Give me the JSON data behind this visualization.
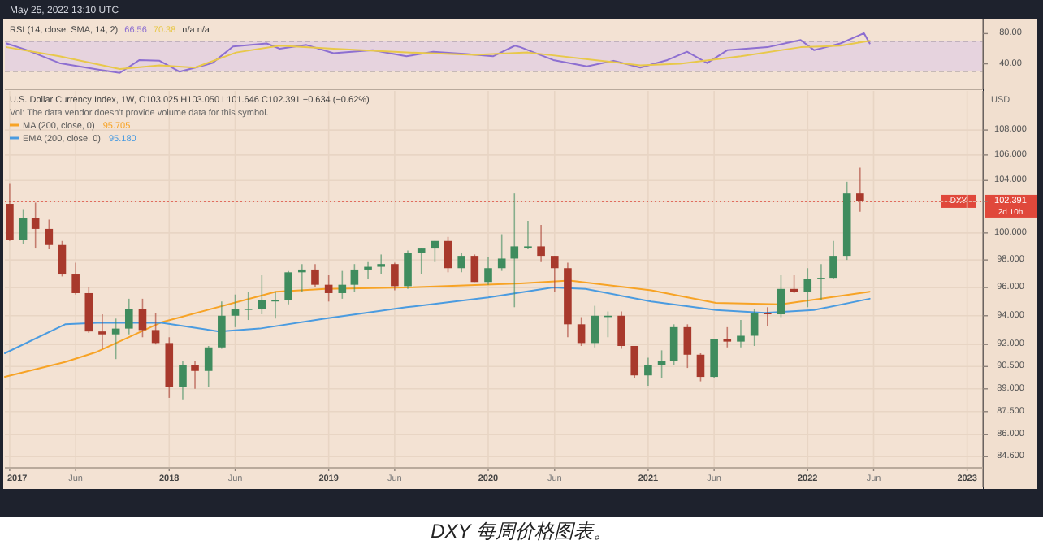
{
  "chart_data": [
    {
      "type": "line",
      "title": "RSI (14, close, SMA, 14, 2)",
      "annotations": [
        "66.56",
        "70.38",
        "n/a n/a",
        "May 25, 2022 13:10 UTC"
      ],
      "xlim": [
        "2016-12-21",
        "2023-02-06"
      ],
      "ylim": [
        6.2,
        98.7
      ],
      "yticks": [
        {
          "value": 80,
          "label": "80.00"
        },
        {
          "value": 40,
          "label": "40.00"
        }
      ],
      "tick_labels": "y",
      "bands": [
        {
          "axis": "y",
          "from": 30,
          "to": 70,
          "color": "#e6d3de"
        }
      ],
      "ref_lines": [
        {
          "axis": "y",
          "value": 70,
          "color": "#9a8f99",
          "line_style": "dashed"
        },
        {
          "axis": "y",
          "value": 30,
          "color": "#9a8f99",
          "line_style": "dashed"
        }
      ],
      "series": [
        {
          "color": "#8d6fd1",
          "x": [
            "2016-12-25",
            "2017-02-08",
            "2017-04-25",
            "2017-07-26",
            "2017-09-10",
            "2017-10-25",
            "2017-12-10",
            "2018-01-25",
            "2018-04-10",
            "2018-05-27",
            "2018-08-12",
            "2018-09-11",
            "2018-11-11",
            "2019-01-12",
            "2019-04-12",
            "2019-06-28",
            "2019-08-28",
            "2019-11-13",
            "2020-01-12",
            "2020-03-02",
            "2020-03-15",
            "2020-05-29",
            "2020-08-14",
            "2020-10-14",
            "2020-12-14",
            "2021-02-14",
            "2021-03-31",
            "2021-05-16",
            "2021-07-01",
            "2021-10-01",
            "2021-12-16",
            "2022-01-16",
            "2022-03-17",
            "2022-05-10",
            "2022-05-23"
          ],
          "values": [
            67,
            58.5,
            41,
            32,
            28,
            45,
            44,
            29.5,
            41,
            63,
            67,
            60,
            65,
            54,
            58,
            50,
            56,
            53,
            50,
            64,
            62,
            45,
            36.5,
            44,
            35,
            45,
            56,
            41,
            58,
            62,
            71.5,
            58,
            67,
            80.5,
            67
          ]
        },
        {
          "color": "#e8c84a",
          "x": [
            "2016-12-25",
            "2017-04-25",
            "2017-09-10",
            "2017-12-10",
            "2018-03-01",
            "2018-06-03",
            "2018-09-11",
            "2019-01-12",
            "2019-06-28",
            "2019-12-01",
            "2020-04-01",
            "2020-09-01",
            "2020-12-14",
            "2021-03-15",
            "2021-08-01",
            "2021-12-16",
            "2022-03-17",
            "2022-05-23"
          ],
          "values": [
            62,
            50,
            33,
            38,
            35,
            55,
            64,
            60,
            55,
            52,
            55,
            45,
            38,
            40,
            50,
            62,
            64,
            70.38
          ]
        }
      ]
    },
    {
      "type": "candlestick",
      "title": "U.S. Dollar Currency Index, 1W, O103.025 H103.050 L101.646 C102.391 −0.634 (−0.62%)",
      "ylabel": "USD",
      "annotations": [
        "Vol: The data vendor doesn't provide volume data for this symbol.",
        "95.705",
        "95.180",
        "2d 10h",
        "DXY 每周价格图表。"
      ],
      "xlim": [
        "2016-12-21",
        "2023-02-06"
      ],
      "ylim": [
        83.9,
        111.2
      ],
      "log": true,
      "grid": true,
      "legend": "top left",
      "xticks": [
        {
          "value": "2017-01-01",
          "label": "2017"
        },
        {
          "value": "2017-06-01",
          "label": "Jun"
        },
        {
          "value": "2018-01-01",
          "label": "2018"
        },
        {
          "value": "2018-06-01",
          "label": "Jun"
        },
        {
          "value": "2019-01-01",
          "label": "2019"
        },
        {
          "value": "2019-06-01",
          "label": "Jun"
        },
        {
          "value": "2020-01-01",
          "label": "2020"
        },
        {
          "value": "2020-06-01",
          "label": "Jun"
        },
        {
          "value": "2021-01-01",
          "label": "2021"
        },
        {
          "value": "2021-06-01",
          "label": "Jun"
        },
        {
          "value": "2022-01-01",
          "label": "2022"
        },
        {
          "value": "2022-06-01",
          "label": "Jun"
        },
        {
          "value": "2023-01-01",
          "label": "2023"
        }
      ],
      "yticks": [
        {
          "value": 84.6,
          "label": "84.600"
        },
        {
          "value": 86,
          "label": "86.000"
        },
        {
          "value": 87.5,
          "label": "87.500"
        },
        {
          "value": 89,
          "label": "89.000"
        },
        {
          "value": 90.5,
          "label": "90.500"
        },
        {
          "value": 92,
          "label": "92.000"
        },
        {
          "value": 94,
          "label": "94.000"
        },
        {
          "value": 96,
          "label": "96.000"
        },
        {
          "value": 98,
          "label": "98.000"
        },
        {
          "value": 100,
          "label": "100.000"
        },
        {
          "value": 102.391,
          "label": "102.391"
        },
        {
          "value": 104,
          "label": "104.000"
        },
        {
          "value": 106,
          "label": "106.000"
        },
        {
          "value": 108,
          "label": "108.000"
        }
      ],
      "ref_lines": [
        {
          "axis": "y",
          "value": 102.391,
          "label": "DXY",
          "color": "#e0483b",
          "line_style": "dotted"
        }
      ],
      "x": [
        "2017-01",
        "2017-02",
        "2017-03",
        "2017-04",
        "2017-05",
        "2017-06",
        "2017-07",
        "2017-08",
        "2017-09",
        "2017-10",
        "2017-11",
        "2017-12",
        "2018-01",
        "2018-02",
        "2018-03",
        "2018-04",
        "2018-05",
        "2018-06",
        "2018-07",
        "2018-08",
        "2018-09",
        "2018-10",
        "2018-11",
        "2018-12",
        "2019-01",
        "2019-02",
        "2019-03",
        "2019-04",
        "2019-05",
        "2019-06",
        "2019-07",
        "2019-08",
        "2019-09",
        "2019-10",
        "2019-11",
        "2019-12",
        "2020-01",
        "2020-02",
        "2020-03",
        "2020-04",
        "2020-05",
        "2020-06",
        "2020-07",
        "2020-08",
        "2020-09",
        "2020-10",
        "2020-11",
        "2020-12",
        "2021-01",
        "2021-02",
        "2021-03",
        "2021-04",
        "2021-05",
        "2021-06",
        "2021-07",
        "2021-08",
        "2021-09",
        "2021-10",
        "2021-11",
        "2021-12",
        "2022-01",
        "2022-02",
        "2022-03",
        "2022-04",
        "2022-05"
      ],
      "ohlc": [
        [
          102.2,
          103.8,
          99.4,
          99.5
        ],
        [
          99.5,
          101.8,
          99.2,
          101.1
        ],
        [
          101.1,
          102.3,
          98.9,
          100.3
        ],
        [
          100.3,
          101.0,
          98.8,
          99.1
        ],
        [
          99.1,
          99.4,
          96.8,
          97.0
        ],
        [
          97.0,
          97.8,
          95.5,
          95.6
        ],
        [
          95.6,
          96.0,
          92.8,
          92.9
        ],
        [
          92.9,
          94.1,
          91.7,
          92.7
        ],
        [
          92.7,
          93.8,
          91.0,
          93.1
        ],
        [
          93.1,
          95.2,
          92.7,
          94.5
        ],
        [
          94.5,
          95.2,
          92.5,
          93.0
        ],
        [
          93.0,
          94.2,
          92.0,
          92.1
        ],
        [
          92.1,
          92.5,
          88.4,
          89.1
        ],
        [
          89.1,
          90.9,
          88.3,
          90.6
        ],
        [
          90.6,
          90.9,
          89.0,
          90.2
        ],
        [
          90.2,
          91.9,
          89.1,
          91.8
        ],
        [
          91.8,
          95.0,
          91.7,
          94.0
        ],
        [
          94.0,
          95.5,
          93.2,
          94.5
        ],
        [
          94.5,
          95.7,
          93.7,
          94.5
        ],
        [
          94.5,
          96.9,
          94.1,
          95.1
        ],
        [
          95.1,
          95.7,
          93.8,
          95.1
        ],
        [
          95.1,
          97.2,
          94.8,
          97.1
        ],
        [
          97.1,
          97.7,
          95.7,
          97.3
        ],
        [
          97.3,
          97.7,
          96.0,
          96.2
        ],
        [
          96.2,
          96.9,
          95.0,
          95.6
        ],
        [
          95.6,
          97.2,
          95.2,
          96.2
        ],
        [
          96.2,
          97.7,
          95.7,
          97.3
        ],
        [
          97.3,
          97.9,
          96.6,
          97.5
        ],
        [
          97.5,
          98.4,
          97.0,
          97.7
        ],
        [
          97.7,
          97.8,
          95.8,
          96.1
        ],
        [
          96.1,
          98.7,
          95.9,
          98.5
        ],
        [
          98.5,
          98.9,
          97.0,
          98.9
        ],
        [
          98.9,
          99.4,
          97.9,
          99.4
        ],
        [
          99.4,
          99.7,
          97.1,
          97.4
        ],
        [
          97.4,
          98.5,
          97.1,
          98.3
        ],
        [
          98.3,
          98.4,
          96.4,
          96.4
        ],
        [
          96.4,
          98.2,
          96.2,
          97.4
        ],
        [
          97.4,
          99.9,
          97.2,
          98.1
        ],
        [
          98.1,
          103.0,
          94.6,
          99.0
        ],
        [
          99.0,
          100.9,
          98.8,
          99.0
        ],
        [
          99.0,
          100.6,
          97.9,
          98.3
        ],
        [
          98.3,
          98.3,
          95.7,
          97.4
        ],
        [
          97.4,
          97.8,
          92.5,
          93.4
        ],
        [
          93.4,
          93.9,
          91.9,
          92.1
        ],
        [
          92.1,
          94.7,
          91.8,
          94.0
        ],
        [
          94.0,
          94.3,
          92.5,
          94.0
        ],
        [
          94.0,
          94.3,
          91.7,
          91.9
        ],
        [
          91.9,
          91.9,
          89.7,
          89.9
        ],
        [
          89.9,
          91.1,
          89.2,
          90.6
        ],
        [
          90.6,
          91.6,
          89.7,
          90.9
        ],
        [
          90.9,
          93.4,
          90.6,
          93.2
        ],
        [
          93.2,
          93.4,
          90.4,
          91.3
        ],
        [
          91.3,
          91.4,
          89.5,
          89.8
        ],
        [
          89.8,
          92.4,
          89.7,
          92.4
        ],
        [
          92.4,
          93.2,
          91.8,
          92.2
        ],
        [
          92.2,
          93.7,
          91.8,
          92.6
        ],
        [
          92.6,
          94.5,
          91.9,
          94.2
        ],
        [
          94.2,
          94.6,
          93.3,
          94.1
        ],
        [
          94.1,
          96.9,
          93.9,
          95.9
        ],
        [
          95.9,
          96.9,
          95.6,
          95.7
        ],
        [
          95.7,
          97.4,
          94.6,
          96.6
        ],
        [
          96.6,
          97.7,
          95.1,
          96.7
        ],
        [
          96.7,
          99.4,
          96.6,
          98.3
        ],
        [
          98.3,
          103.9,
          98.0,
          103.0
        ],
        [
          103.0,
          105.0,
          101.6,
          102.4
        ]
      ],
      "colors": [
        "#a8392c",
        "#3f8c5e",
        "#a8392c",
        "#a8392c",
        "#a8392c",
        "#a8392c",
        "#a8392c",
        "#a8392c",
        "#3f8c5e",
        "#3f8c5e",
        "#a8392c",
        "#a8392c",
        "#a8392c",
        "#3f8c5e",
        "#a8392c",
        "#3f8c5e",
        "#3f8c5e",
        "#3f8c5e",
        "#3f8c5e",
        "#3f8c5e",
        "#3f8c5e",
        "#3f8c5e",
        "#3f8c5e",
        "#a8392c",
        "#a8392c",
        "#3f8c5e",
        "#3f8c5e",
        "#3f8c5e",
        "#3f8c5e",
        "#a8392c",
        "#3f8c5e",
        "#3f8c5e",
        "#3f8c5e",
        "#a8392c",
        "#3f8c5e",
        "#a8392c",
        "#3f8c5e",
        "#3f8c5e",
        "#3f8c5e",
        "#3f8c5e",
        "#a8392c",
        "#a8392c",
        "#a8392c",
        "#a8392c",
        "#3f8c5e",
        "#3f8c5e",
        "#a8392c",
        "#a8392c",
        "#3f8c5e",
        "#3f8c5e",
        "#3f8c5e",
        "#a8392c",
        "#a8392c",
        "#3f8c5e",
        "#a8392c",
        "#3f8c5e",
        "#3f8c5e",
        "#a8392c",
        "#3f8c5e",
        "#a8392c",
        "#3f8c5e",
        "#3f8c5e",
        "#3f8c5e",
        "#3f8c5e",
        "#a8392c"
      ],
      "series": [
        {
          "name": "MA (200, close, 0)",
          "type": "line",
          "color": "#f7a325",
          "x": [
            "2016-12-21",
            "2017-05-08",
            "2017-07-20",
            "2017-12-15",
            "2018-09-02",
            "2018-12-24",
            "2019-06-28",
            "2020-03-15",
            "2020-07-05",
            "2021-01-08",
            "2021-06-05",
            "2021-11-01",
            "2022-05-23"
          ],
          "values": [
            89.8,
            90.8,
            91.5,
            93.55,
            95.7,
            95.9,
            96.0,
            96.3,
            96.5,
            95.8,
            94.9,
            94.8,
            95.7
          ]
        },
        {
          "name": "EMA (200, close, 0)",
          "type": "line",
          "color": "#4a9be0",
          "x": [
            "2016-12-21",
            "2017-05-08",
            "2017-07-20",
            "2017-12-15",
            "2018-04-25",
            "2018-07-27",
            "2018-12-24",
            "2019-06-28",
            "2020-01-01",
            "2020-05-28",
            "2020-08-11",
            "2021-01-08",
            "2021-06-05",
            "2021-09-25",
            "2022-01-15",
            "2022-05-23"
          ],
          "values": [
            91.4,
            93.4,
            93.5,
            93.5,
            92.9,
            93.1,
            93.8,
            94.6,
            95.3,
            96.0,
            95.9,
            95.0,
            94.4,
            94.2,
            94.4,
            95.2
          ]
        }
      ]
    }
  ]
}
